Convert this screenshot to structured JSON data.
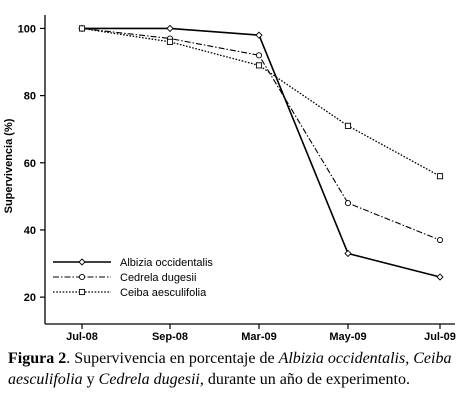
{
  "chart_data": {
    "type": "line",
    "categories": [
      "Jul-08",
      "Sep-08",
      "Mar-09",
      "May-09",
      "Jul-09"
    ],
    "ylabel": "Supervivencia (%)",
    "xlabel": "",
    "ylim": [
      12,
      104
    ],
    "yticks": [
      20,
      40,
      60,
      80,
      100
    ],
    "grid": false,
    "legend_position": "bottom-left",
    "series": [
      {
        "name": "Albizia occidentalis",
        "values": [
          100,
          100,
          98,
          33,
          26
        ],
        "line": "solid",
        "marker": "diamond"
      },
      {
        "name": "Cedrela dugesii",
        "values": [
          100,
          97,
          92,
          48,
          37
        ],
        "line": "dashdot",
        "marker": "circle"
      },
      {
        "name": "Ceiba aesculifolia",
        "values": [
          100,
          96,
          89,
          71,
          56
        ],
        "line": "dotted",
        "marker": "square"
      }
    ]
  },
  "caption": {
    "fig_label": "Figura 2",
    "text_1": ". Supervivencia en porcentaje de ",
    "species_1": "Albizia occidentalis",
    "text_2": ", ",
    "species_2": "Ceiba aesculifolia",
    "text_3": " y ",
    "species_3": "Cedrela dugesii",
    "text_4": ", durante un año de experimento."
  }
}
